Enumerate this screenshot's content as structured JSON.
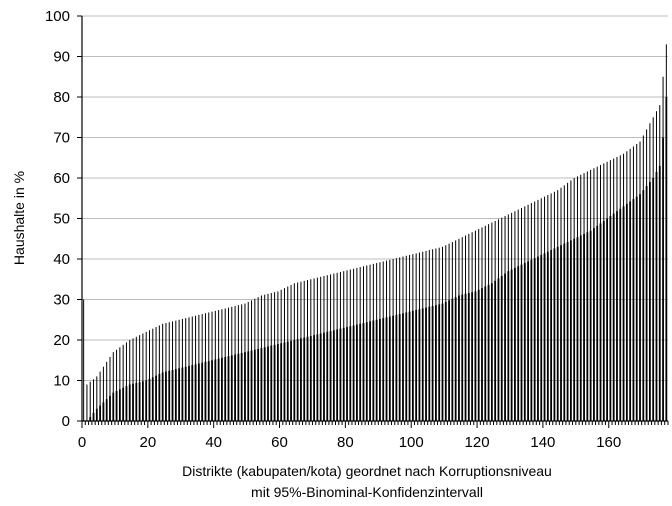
{
  "chart_data": {
    "type": "bar",
    "title": "",
    "xlabel": "Distrikte (kabupaten/kota) geordnet nach Korruptionsniveau",
    "xlabel_line2": "mit 95%-Binominal-Konfidenzintervall",
    "ylabel": "Haushalte in %",
    "xlim": [
      0,
      178
    ],
    "ylim": [
      0,
      100
    ],
    "x_ticks": [
      0,
      20,
      40,
      60,
      80,
      100,
      120,
      140,
      160
    ],
    "y_ticks": [
      0,
      10,
      20,
      30,
      40,
      50,
      60,
      70,
      80,
      90,
      100
    ],
    "grid": "horizontal",
    "legend": "none",
    "n_districts": 178,
    "points_sampled": {
      "x": [
        1,
        2,
        5,
        10,
        15,
        20,
        25,
        30,
        35,
        40,
        45,
        50,
        55,
        60,
        65,
        70,
        75,
        80,
        85,
        90,
        95,
        100,
        105,
        110,
        115,
        120,
        125,
        130,
        135,
        140,
        145,
        150,
        155,
        160,
        165,
        170,
        172,
        174,
        176,
        177,
        178
      ],
      "value": [
        0,
        0,
        3,
        7,
        9,
        10,
        12,
        13,
        14,
        15,
        16,
        17,
        18,
        19,
        20,
        21,
        22,
        23,
        24,
        25,
        26,
        27,
        28,
        29,
        31,
        32,
        34,
        37,
        39,
        41,
        43,
        45,
        47,
        50,
        53,
        56,
        58,
        60,
        63,
        70,
        80
      ],
      "upper": [
        30,
        9,
        11,
        17,
        20,
        22,
        24,
        25,
        26,
        27,
        28,
        29,
        31,
        32,
        34,
        35,
        36,
        37,
        38,
        39,
        40,
        41,
        42,
        43,
        45,
        47,
        49,
        51,
        53,
        55,
        57,
        60,
        62,
        64,
        66,
        69,
        72,
        75,
        78,
        85,
        93
      ],
      "lower": [
        0,
        0,
        0,
        1,
        2,
        3,
        4,
        5,
        6,
        7,
        7,
        8,
        9,
        10,
        11,
        12,
        13,
        14,
        15,
        16,
        17,
        18,
        19,
        20,
        21,
        22,
        24,
        26,
        28,
        30,
        32,
        35,
        37,
        40,
        43,
        46,
        48,
        50,
        53,
        60,
        68
      ]
    }
  }
}
